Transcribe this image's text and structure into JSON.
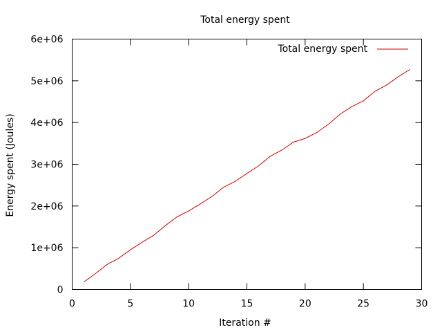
{
  "chart_data": {
    "type": "line",
    "title": "Total energy spent",
    "xlabel": "Iteration #",
    "ylabel": "Energy spent (Joules)",
    "xlim": [
      0,
      30
    ],
    "ylim": [
      0,
      6000000
    ],
    "x_ticks": [
      0,
      5,
      10,
      15,
      20,
      25,
      30
    ],
    "x_tick_labels": [
      "0",
      "5",
      "10",
      "15",
      "20",
      "25",
      "30"
    ],
    "y_ticks": [
      0,
      1000000,
      2000000,
      3000000,
      4000000,
      5000000,
      6000000
    ],
    "y_tick_labels": [
      "0",
      "1e+06",
      "2e+06",
      "3e+06",
      "4e+06",
      "5e+06",
      "6e+06"
    ],
    "grid": false,
    "legend_position": "top-right",
    "series": [
      {
        "name": "Total energy spent",
        "color": "#cc0000",
        "x": [
          1,
          2,
          3,
          4,
          5,
          6,
          7,
          8,
          9,
          10,
          11,
          12,
          13,
          14,
          15,
          16,
          17,
          18,
          19,
          20,
          21,
          22,
          23,
          24,
          25,
          26,
          27,
          28,
          29
        ],
        "y": [
          180000,
          380000,
          600000,
          750000,
          950000,
          1130000,
          1300000,
          1530000,
          1740000,
          1880000,
          2050000,
          2230000,
          2450000,
          2590000,
          2780000,
          2960000,
          3190000,
          3340000,
          3530000,
          3620000,
          3760000,
          3960000,
          4200000,
          4380000,
          4520000,
          4750000,
          4900000,
          5100000,
          5270000
        ]
      }
    ]
  }
}
